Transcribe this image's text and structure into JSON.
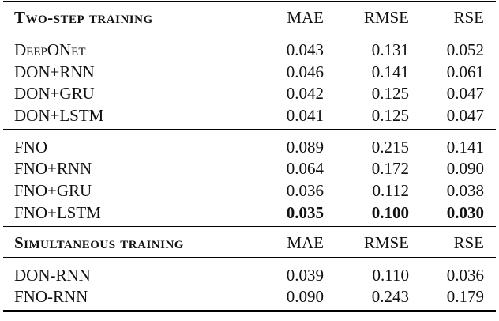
{
  "sections": [
    {
      "header": [
        "Two-step training",
        "MAE",
        "RMSE",
        "RSE"
      ],
      "groups": [
        [
          [
            "DeepONet",
            "0.043",
            "0.131",
            "0.052"
          ],
          [
            "DON+RNN",
            "0.046",
            "0.141",
            "0.061"
          ],
          [
            "DON+GRU",
            "0.042",
            "0.125",
            "0.047"
          ],
          [
            "DON+LSTM",
            "0.041",
            "0.125",
            "0.047"
          ]
        ],
        [
          [
            "FNO",
            "0.089",
            "0.215",
            "0.141"
          ],
          [
            "FNO+RNN",
            "0.064",
            "0.172",
            "0.090"
          ],
          [
            "FNO+GRU",
            "0.036",
            "0.112",
            "0.038"
          ],
          [
            "FNO+LSTM",
            "0.035",
            "0.100",
            "0.030"
          ]
        ]
      ]
    },
    {
      "header": [
        "Simultaneous training",
        "MAE",
        "RMSE",
        "RSE"
      ],
      "groups": [
        [
          [
            "DON-RNN",
            "0.039",
            "0.110",
            "0.036"
          ],
          [
            "FNO-RNN",
            "0.090",
            "0.243",
            "0.179"
          ]
        ]
      ]
    }
  ]
}
